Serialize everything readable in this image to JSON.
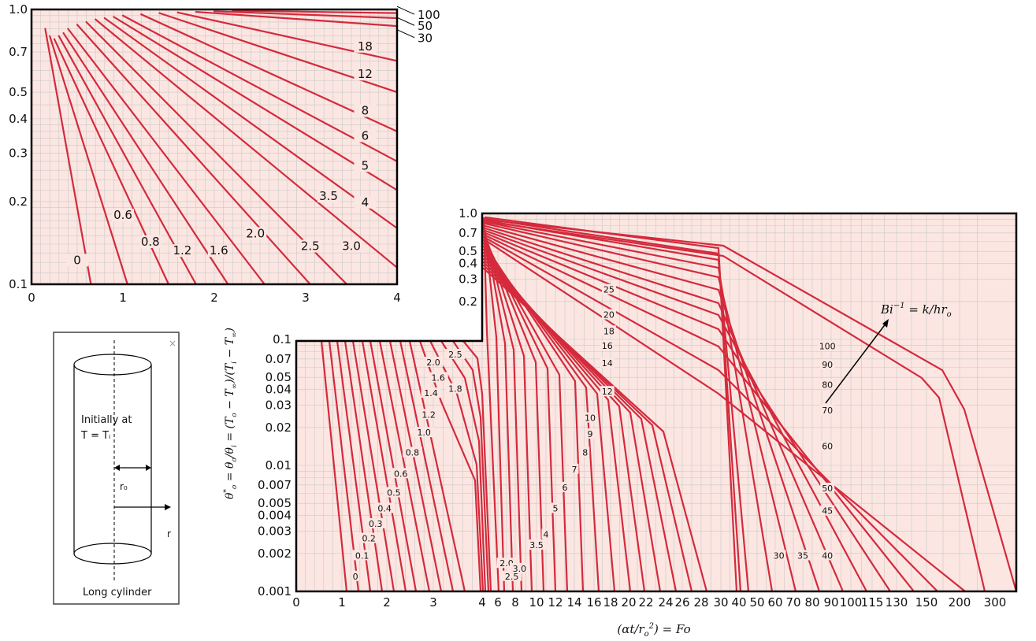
{
  "colors": {
    "plot_bg": "#fbe6e2",
    "grid": "#c9c9c9",
    "curve": "#d42a3c",
    "frame": "#000000"
  },
  "chart_data": [
    {
      "type": "line",
      "title": "",
      "xlabel": "",
      "ylabel": "",
      "xlim": [
        0,
        4
      ],
      "ylim": [
        0.1,
        1.0
      ],
      "yscale": "log",
      "x_ticks": [
        "0",
        "1",
        "2",
        "3",
        "4"
      ],
      "y_ticks": [
        {
          "v": 1.0,
          "label": "1.0"
        },
        {
          "v": 0.7,
          "label": "0.7"
        },
        {
          "v": 0.5,
          "label": "0.5"
        },
        {
          "v": 0.4,
          "label": "0.4"
        },
        {
          "v": 0.3,
          "label": "0.3"
        },
        {
          "v": 0.2,
          "label": "0.2"
        },
        {
          "v": 0.1,
          "label": "0.1"
        }
      ],
      "grid": true,
      "series": [
        {
          "name": "0",
          "x0": 0.15,
          "y0": 0.85,
          "x1": 0.65,
          "y1": 0.1,
          "label_at": [
            0.5,
            0.12
          ]
        },
        {
          "name": "0.6",
          "x0": 0.2,
          "y0": 0.8,
          "x1": 1.05,
          "y1": 0.1,
          "label_at": [
            1.0,
            0.175
          ]
        },
        {
          "name": "0.8",
          "x0": 0.25,
          "y0": 0.78,
          "x1": 1.5,
          "y1": 0.1,
          "label_at": [
            1.3,
            0.14
          ]
        },
        {
          "name": "1.2",
          "x0": 0.3,
          "y0": 0.8,
          "x1": 1.8,
          "y1": 0.1,
          "label_at": [
            1.65,
            0.13
          ]
        },
        {
          "name": "1.6",
          "x0": 0.35,
          "y0": 0.82,
          "x1": 2.15,
          "y1": 0.1,
          "label_at": [
            2.05,
            0.13
          ]
        },
        {
          "name": "2.0",
          "x0": 0.4,
          "y0": 0.85,
          "x1": 2.55,
          "y1": 0.1,
          "label_at": [
            2.45,
            0.15
          ]
        },
        {
          "name": "2.5",
          "x0": 0.5,
          "y0": 0.88,
          "x1": 3.05,
          "y1": 0.1,
          "label_at": [
            3.05,
            0.135
          ]
        },
        {
          "name": "3.0",
          "x0": 0.6,
          "y0": 0.9,
          "x1": 3.45,
          "y1": 0.1,
          "label_at": [
            3.5,
            0.135
          ]
        },
        {
          "name": "3.5",
          "x0": 0.7,
          "y0": 0.92,
          "x1": 4.0,
          "y1": 0.115,
          "label_at": [
            3.25,
            0.205
          ]
        },
        {
          "name": "4",
          "x0": 0.8,
          "y0": 0.93,
          "x1": 4.0,
          "y1": 0.16,
          "label_at": [
            3.65,
            0.195
          ]
        },
        {
          "name": "5",
          "x0": 0.9,
          "y0": 0.94,
          "x1": 4.0,
          "y1": 0.22,
          "label_at": [
            3.65,
            0.265
          ]
        },
        {
          "name": "6",
          "x0": 1.0,
          "y0": 0.95,
          "x1": 4.0,
          "y1": 0.28,
          "label_at": [
            3.65,
            0.34
          ]
        },
        {
          "name": "8",
          "x0": 1.2,
          "y0": 0.96,
          "x1": 4.0,
          "y1": 0.36,
          "label_at": [
            3.65,
            0.42
          ]
        },
        {
          "name": "12",
          "x0": 1.4,
          "y0": 0.97,
          "x1": 4.0,
          "y1": 0.5,
          "label_at": [
            3.65,
            0.57
          ]
        },
        {
          "name": "18",
          "x0": 1.6,
          "y0": 0.975,
          "x1": 4.0,
          "y1": 0.65,
          "label_at": [
            3.65,
            0.72
          ]
        },
        {
          "name": "30",
          "x0": 1.8,
          "y0": 0.98,
          "x1": 4.0,
          "y1": 0.87,
          "label_at": null
        },
        {
          "name": "50",
          "x0": 2.0,
          "y0": 0.985,
          "x1": 4.0,
          "y1": 0.93,
          "label_at": null
        },
        {
          "name": "100",
          "x0": 2.2,
          "y0": 0.99,
          "x1": 4.0,
          "y1": 0.97,
          "label_at": null
        }
      ],
      "outside_labels": [
        {
          "text": "100",
          "y": 0.96
        },
        {
          "text": "50",
          "y": 0.875
        },
        {
          "text": "30",
          "y": 0.79
        }
      ]
    },
    {
      "type": "line",
      "title": "",
      "xlabel": "(αt/r_o²) = Fo",
      "ylabel": "θ*_o = θ_o/θ_i = (T_o − T_∞)/(T_i − T_∞)",
      "ylim": [
        0.001,
        1.0
      ],
      "yscale": "log",
      "x_ticks": [
        "0",
        "1",
        "2",
        "3",
        "4",
        "6",
        "8",
        "10",
        "12",
        "14",
        "16",
        "18",
        "20",
        "22",
        "24",
        "26",
        "28",
        "30",
        "40",
        "50",
        "60",
        "70",
        "80",
        "90",
        "100",
        "115",
        "130",
        "150",
        "200",
        "300"
      ],
      "y_ticks": [
        {
          "v": 1.0,
          "label": "1.0"
        },
        {
          "v": 0.7,
          "label": "0.7"
        },
        {
          "v": 0.5,
          "label": "0.5"
        },
        {
          "v": 0.4,
          "label": "0.4"
        },
        {
          "v": 0.3,
          "label": "0.3"
        },
        {
          "v": 0.2,
          "label": "0.2"
        },
        {
          "v": 0.1,
          "label": "0.1"
        },
        {
          "v": 0.07,
          "label": "0.07"
        },
        {
          "v": 0.05,
          "label": "0.05"
        },
        {
          "v": 0.04,
          "label": "0.04"
        },
        {
          "v": 0.03,
          "label": "0.03"
        },
        {
          "v": 0.02,
          "label": "0.02"
        },
        {
          "v": 0.01,
          "label": "0.01"
        },
        {
          "v": 0.007,
          "label": "0.007"
        },
        {
          "v": 0.005,
          "label": "0.005"
        },
        {
          "v": 0.004,
          "label": "0.004"
        },
        {
          "v": 0.003,
          "label": "0.003"
        },
        {
          "v": 0.002,
          "label": "0.002"
        },
        {
          "v": 0.001,
          "label": "0.001"
        }
      ],
      "grid": true,
      "annotation": "Bi⁻¹ = k/hr_o",
      "series_labels_segment1": [
        {
          "name": "0",
          "x": 1.3,
          "y": 0.0013
        },
        {
          "name": "0.1",
          "x": 1.45,
          "y": 0.0019
        },
        {
          "name": "0.2",
          "x": 1.6,
          "y": 0.0026
        },
        {
          "name": "0.3",
          "x": 1.75,
          "y": 0.0034
        },
        {
          "name": "0.4",
          "x": 1.95,
          "y": 0.0045
        },
        {
          "name": "0.5",
          "x": 2.15,
          "y": 0.006
        },
        {
          "name": "0.6",
          "x": 2.3,
          "y": 0.0085
        },
        {
          "name": "0.8",
          "x": 2.55,
          "y": 0.0125
        },
        {
          "name": "1.0",
          "x": 2.8,
          "y": 0.018
        },
        {
          "name": "1.2",
          "x": 2.9,
          "y": 0.025
        },
        {
          "name": "1.4",
          "x": 2.95,
          "y": 0.037
        },
        {
          "name": "1.6",
          "x": 3.1,
          "y": 0.049
        },
        {
          "name": "1.8",
          "x": 3.45,
          "y": 0.04
        },
        {
          "name": "2.0",
          "x": 3.0,
          "y": 0.065
        },
        {
          "name": "2.5",
          "x": 3.45,
          "y": 0.075
        }
      ],
      "series_labels_segment2": [
        {
          "name": "2.0",
          "x": 7.0,
          "y": 0.00165
        },
        {
          "name": "2.5",
          "x": 7.6,
          "y": 0.0013
        },
        {
          "name": "3.0",
          "x": 8.4,
          "y": 0.0015
        },
        {
          "name": "3.5",
          "x": 10.0,
          "y": 0.0023
        },
        {
          "name": "4",
          "x": 11.0,
          "y": 0.0028
        },
        {
          "name": "5",
          "x": 12.0,
          "y": 0.0045
        },
        {
          "name": "6",
          "x": 13.0,
          "y": 0.0066
        },
        {
          "name": "7",
          "x": 14.0,
          "y": 0.0092
        },
        {
          "name": "8",
          "x": 15.1,
          "y": 0.0125
        },
        {
          "name": "9",
          "x": 15.6,
          "y": 0.0175
        },
        {
          "name": "10",
          "x": 15.6,
          "y": 0.0235
        },
        {
          "name": "12",
          "x": 17.6,
          "y": 0.038
        },
        {
          "name": "14",
          "x": 17.6,
          "y": 0.064
        },
        {
          "name": "16",
          "x": 17.6,
          "y": 0.088
        },
        {
          "name": "18",
          "x": 17.8,
          "y": 0.115
        },
        {
          "name": "20",
          "x": 17.8,
          "y": 0.155
        },
        {
          "name": "25",
          "x": 17.8,
          "y": 0.245
        }
      ],
      "series_labels_segment3": [
        {
          "name": "30",
          "x": 62,
          "y": 0.0019
        },
        {
          "name": "35",
          "x": 75,
          "y": 0.0019
        },
        {
          "name": "40",
          "x": 88,
          "y": 0.0019
        },
        {
          "name": "45",
          "x": 88,
          "y": 0.0043
        },
        {
          "name": "50",
          "x": 88,
          "y": 0.0065
        },
        {
          "name": "60",
          "x": 88,
          "y": 0.014
        },
        {
          "name": "70",
          "x": 88,
          "y": 0.027
        },
        {
          "name": "80",
          "x": 88,
          "y": 0.043
        },
        {
          "name": "90",
          "x": 88,
          "y": 0.062
        },
        {
          "name": "100",
          "x": 88,
          "y": 0.087
        }
      ]
    }
  ],
  "diagram": {
    "text_initially": "Initially at",
    "text_temp": "T = Tᵢ",
    "text_r0": "r₀",
    "text_r": "r",
    "text_caption": "Long cylinder",
    "close_glyph": "×"
  }
}
